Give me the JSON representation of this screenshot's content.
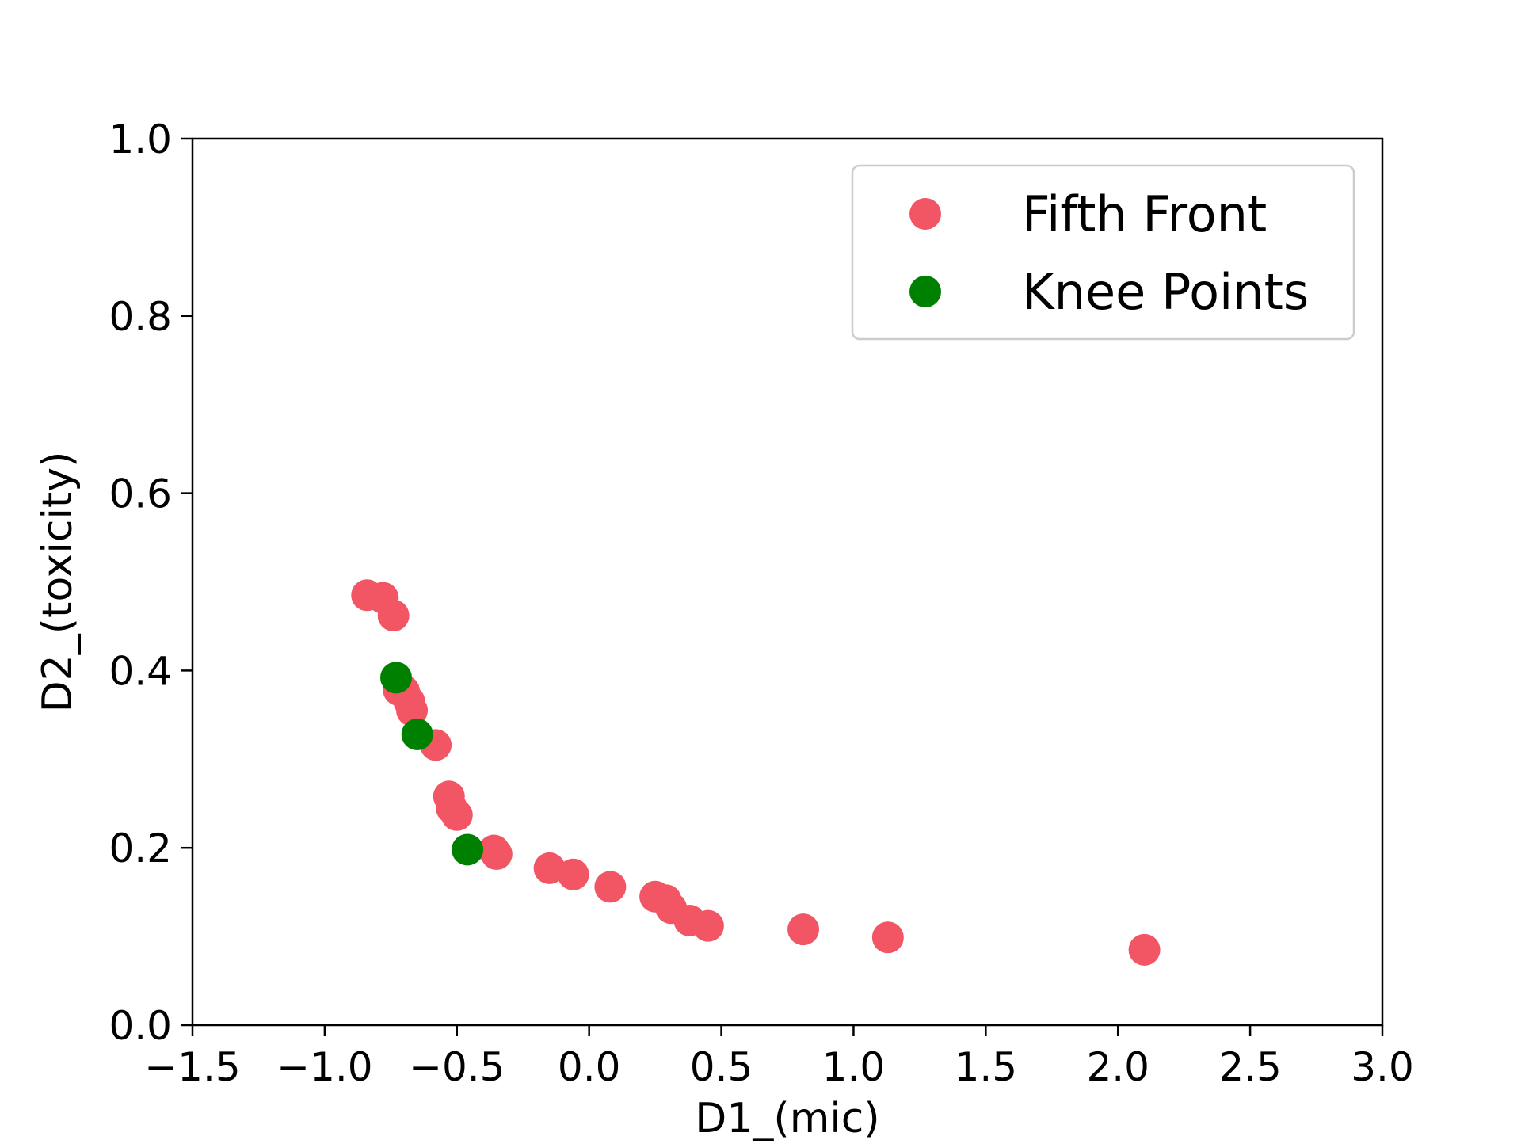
{
  "chart_data": {
    "type": "scatter",
    "title": "",
    "xlabel": "D1_(mic)",
    "ylabel": "D2_(toxicity)",
    "xlim": [
      -1.5,
      3.0
    ],
    "ylim": [
      0.0,
      1.0
    ],
    "x_ticks": [
      -1.5,
      -1.0,
      -0.5,
      0.0,
      0.5,
      1.0,
      1.5,
      2.0,
      2.5,
      3.0
    ],
    "x_tick_labels": [
      "−1.5",
      "−1.0",
      "−0.5",
      "0.0",
      "0.5",
      "1.0",
      "1.5",
      "2.0",
      "2.5",
      "3.0"
    ],
    "y_ticks": [
      0.0,
      0.2,
      0.4,
      0.6,
      0.8,
      1.0
    ],
    "y_tick_labels": [
      "0.0",
      "0.2",
      "0.4",
      "0.6",
      "0.8",
      "1.0"
    ],
    "grid": false,
    "legend": "top-right",
    "series": [
      {
        "name": "Fifth Front",
        "color": "#f25563",
        "x": [
          -0.84,
          -0.78,
          -0.74,
          -0.72,
          -0.7,
          -0.68,
          -0.67,
          -0.58,
          -0.53,
          -0.52,
          -0.5,
          -0.36,
          -0.35,
          -0.15,
          -0.06,
          0.08,
          0.25,
          0.29,
          0.31,
          0.38,
          0.45,
          0.81,
          1.13,
          2.1
        ],
        "y": [
          0.485,
          0.482,
          0.462,
          0.378,
          0.377,
          0.365,
          0.355,
          0.316,
          0.258,
          0.245,
          0.237,
          0.197,
          0.193,
          0.177,
          0.17,
          0.156,
          0.145,
          0.141,
          0.132,
          0.118,
          0.112,
          0.108,
          0.099,
          0.085
        ]
      },
      {
        "name": "Knee Points",
        "color": "#008000",
        "x": [
          -0.73,
          -0.65,
          -0.46
        ],
        "y": [
          0.392,
          0.328,
          0.198
        ]
      }
    ]
  }
}
